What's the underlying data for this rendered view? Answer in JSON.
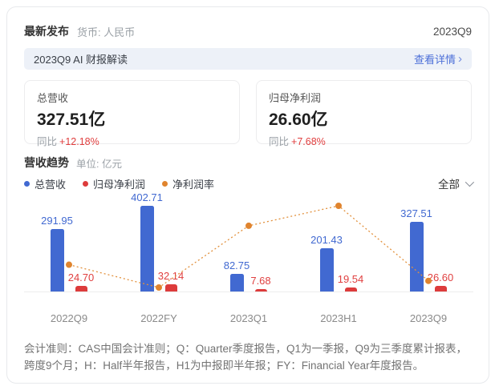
{
  "header": {
    "title": "最新发布",
    "currency_label": "货币: 人民币",
    "period": "2023Q9"
  },
  "ai_banner": {
    "title": "2023Q9 AI 财报解读",
    "link_label": "查看详情",
    "chevron": "›"
  },
  "summary_cards": [
    {
      "label": "总营收",
      "value": "327.51亿",
      "yoy_label": "同比",
      "yoy_value": "+12.18%"
    },
    {
      "label": "归母净利润",
      "value": "26.60亿",
      "yoy_label": "同比",
      "yoy_value": "+7.68%"
    }
  ],
  "trend_section": {
    "title": "营收趋势",
    "unit_label": "单位: 亿元",
    "legend": [
      {
        "label": "总营收",
        "color": "#4169d1"
      },
      {
        "label": "归母净利润",
        "color": "#dd3b3b"
      },
      {
        "label": "净利润率",
        "color": "#e0842e"
      }
    ],
    "filter_label": "全部"
  },
  "chart_data": {
    "type": "bar",
    "categories": [
      "2022Q9",
      "2022FY",
      "2023Q1",
      "2023H1",
      "2023Q9"
    ],
    "series": [
      {
        "name": "总营收",
        "type": "bar",
        "color": "#4169d1",
        "values": [
          291.95,
          402.71,
          82.75,
          201.43,
          327.51
        ]
      },
      {
        "name": "归母净利润",
        "type": "bar",
        "color": "#dd3b3b",
        "values": [
          24.7,
          32.14,
          7.68,
          19.54,
          26.6
        ]
      },
      {
        "name": "净利润率",
        "type": "line",
        "color": "#e0842e",
        "unit": "%",
        "values": [
          8.46,
          7.98,
          9.28,
          9.7,
          8.12
        ]
      }
    ],
    "ylabel": "亿元",
    "value_labels": "shown",
    "legend_position": "top-left",
    "grid": false
  },
  "footnote": "会计准则：CAS中国会计准则；Q：Quarter季度报告，Q1为一季报，Q9为三季度累计报表，跨度9个月；H：Half半年报告，H1为中报即半年报；FY：Financial Year年度报告。",
  "colors": {
    "brand_blue": "#4169d1",
    "negative_red": "#dd3b3b",
    "accent_orange": "#e0842e",
    "link_blue": "#4c6fd8",
    "banner_bg": "#edf1f8"
  }
}
